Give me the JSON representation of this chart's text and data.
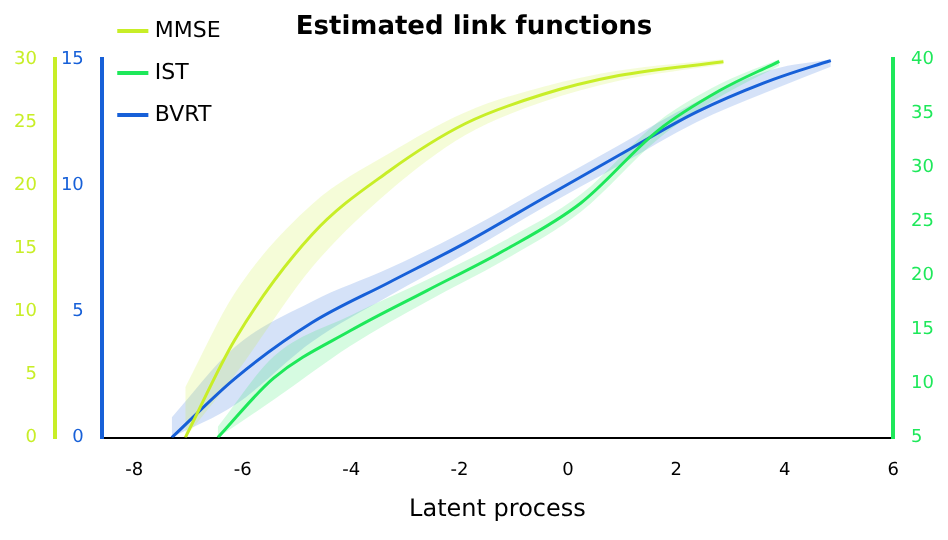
{
  "chart_data": {
    "type": "line",
    "title": "Estimated link functions",
    "xlabel": "Latent process",
    "xlim": [
      -8.6,
      6
    ],
    "xticks": [
      -8,
      -6,
      -4,
      -2,
      0,
      2,
      4,
      6
    ],
    "ylim": [
      0,
      15
    ],
    "yticks": [
      0,
      5,
      10,
      15
    ],
    "y2lim": [
      0,
      30
    ],
    "y2ticks": [
      0,
      5,
      10,
      15,
      20,
      25,
      30
    ],
    "y3lim": [
      5,
      40
    ],
    "y3ticks": [
      5,
      10,
      15,
      20,
      25,
      30,
      35,
      40
    ],
    "grid": false,
    "legend": "top left",
    "marker": "none",
    "line_style": "solid",
    "series": [
      {
        "name": "MMSE",
        "color": "#c8ee27",
        "axis": "y2",
        "x": [
          -7.06,
          -6.14,
          -4.72,
          -3.31,
          -1.89,
          -0.47,
          0.94,
          2.87
        ],
        "values": [
          0,
          7.8,
          16.1,
          21.1,
          24.9,
          27.2,
          28.7,
          29.8
        ],
        "lower": [
          0,
          5.0,
          13.5,
          19.5,
          24.0,
          26.6,
          28.3,
          29.6
        ],
        "upper": [
          4,
          11.5,
          18.5,
          22.5,
          25.8,
          27.8,
          29.1,
          30
        ]
      },
      {
        "name": "IST",
        "color": "#1ee85a",
        "axis": "y3",
        "x": [
          -6.46,
          -5.43,
          -4.01,
          -2.6,
          -1.18,
          0.24,
          1.66,
          2.8,
          3.9
        ],
        "values": [
          5,
          10.5,
          14.9,
          18.6,
          22.3,
          26.7,
          33.4,
          37.1,
          39.8
        ],
        "lower": [
          5,
          8.5,
          13.5,
          17.6,
          21.4,
          25.9,
          32.6,
          36.5,
          39.4
        ],
        "upper": [
          6,
          12.5,
          16.3,
          19.6,
          23.2,
          27.5,
          34.2,
          37.7,
          40
        ]
      },
      {
        "name": "BVRT",
        "color": "#1760d8",
        "axis": "y",
        "x": [
          -7.31,
          -6.14,
          -4.72,
          -3.31,
          -1.89,
          -0.47,
          0.95,
          2.37,
          3.79,
          4.85
        ],
        "values": [
          0,
          2.35,
          4.56,
          6.14,
          7.72,
          9.47,
          11.2,
          12.9,
          14.2,
          14.95
        ],
        "lower": [
          0,
          1.3,
          3.8,
          5.6,
          7.3,
          9.1,
          10.8,
          12.5,
          13.8,
          14.7
        ],
        "upper": [
          0.8,
          3.6,
          5.4,
          6.7,
          8.2,
          9.9,
          11.6,
          13.3,
          14.6,
          15
        ]
      }
    ]
  }
}
